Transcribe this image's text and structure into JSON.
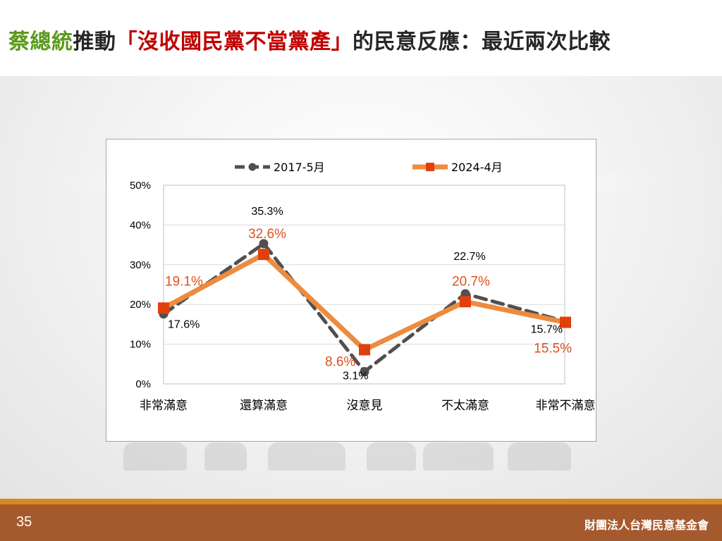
{
  "slide": {
    "title_part1": "蔡總統",
    "title_part2": "推動",
    "title_part3": "「沒收國民黨不當黨產」",
    "title_part4": "的民意反應：最近兩次比較",
    "page_number": "35",
    "organization": "財團法人台灣民意基金會"
  },
  "colors": {
    "title_green": "#5a9a1c",
    "title_red": "#c00000",
    "series1": "#505050",
    "series2_line": "#ed8b3e",
    "series2_marker": "#e0400c",
    "series2_label": "#e0501c",
    "footer": "#a55a2e",
    "footer_strip": "#d8891e"
  },
  "chart_data": {
    "type": "line",
    "categories": [
      "非常滿意",
      "還算滿意",
      "沒意見",
      "不太滿意",
      "非常不滿意"
    ],
    "series": [
      {
        "name": "2017-5月",
        "values": [
          17.6,
          35.3,
          3.1,
          22.7,
          15.7
        ],
        "labels": [
          "17.6%",
          "35.3%",
          "3.1%",
          "22.7%",
          "15.7%"
        ],
        "style": "dashed",
        "marker": "circle"
      },
      {
        "name": "2024-4月",
        "values": [
          19.1,
          32.6,
          8.6,
          20.7,
          15.5
        ],
        "labels": [
          "19.1%",
          "32.6%",
          "8.6%",
          "20.7%",
          "15.5%"
        ],
        "style": "solid",
        "marker": "square"
      }
    ],
    "y_ticks": [
      "0%",
      "10%",
      "20%",
      "30%",
      "40%",
      "50%"
    ],
    "ylim": [
      0,
      50
    ],
    "grid": true,
    "legend_position": "top"
  }
}
